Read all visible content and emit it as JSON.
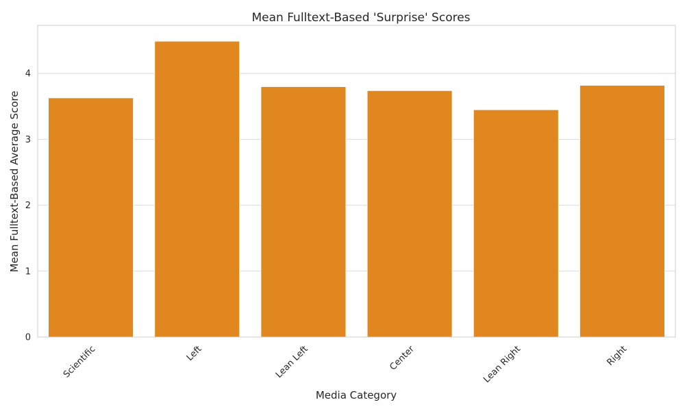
{
  "chart_data": {
    "type": "bar",
    "title": "Mean Fulltext-Based 'Surprise' Scores",
    "xlabel": "Media Category",
    "ylabel": "Mean Fulltext-Based Average Score",
    "categories": [
      "Scientific",
      "Left",
      "Lean Left",
      "Center",
      "Lean Right",
      "Right"
    ],
    "values": [
      3.63,
      4.49,
      3.8,
      3.74,
      3.45,
      3.82
    ],
    "ylim": [
      0,
      4.73
    ],
    "yticks": [
      "0",
      "1",
      "2",
      "3",
      "4"
    ],
    "grid": true,
    "bar_color": "#e0881f",
    "grid_color": "#d9d9d9"
  }
}
